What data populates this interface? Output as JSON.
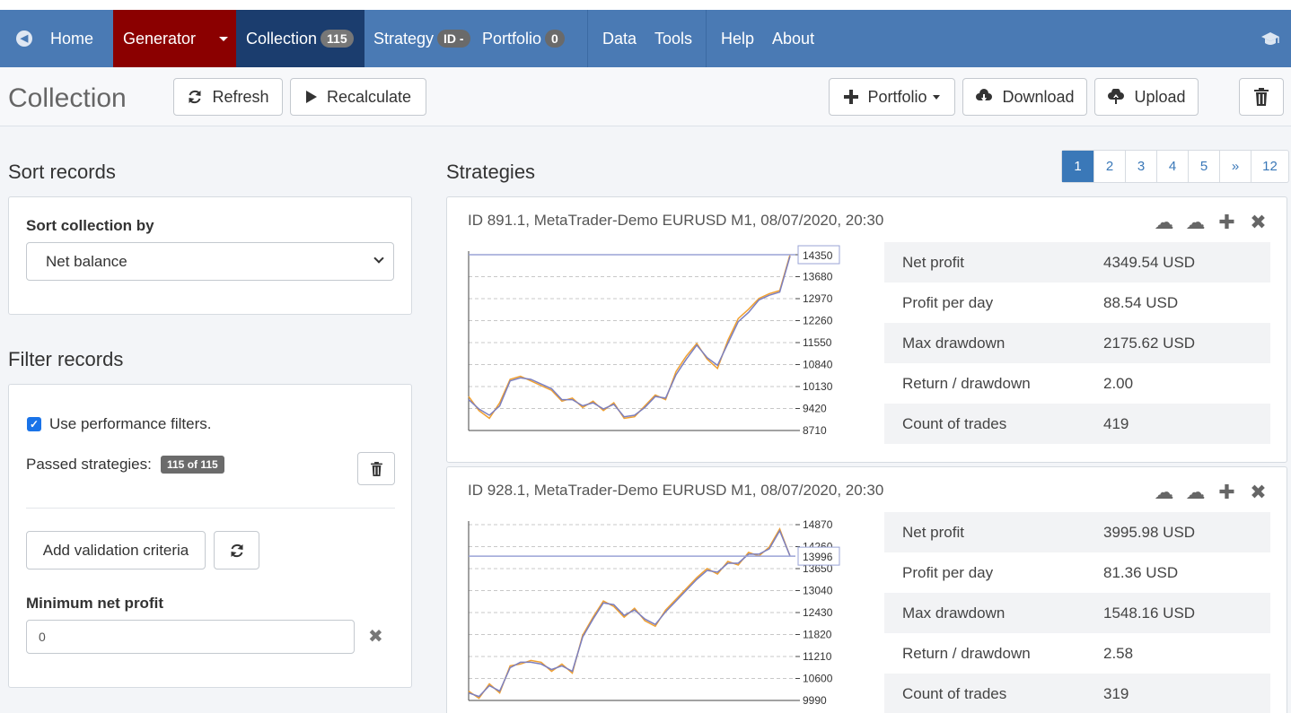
{
  "navbar": {
    "home": "Home",
    "generator": "Generator",
    "collection": "Collection",
    "collection_count": "115",
    "strategy": "Strategy",
    "strategy_badge": "ID -",
    "portfolio": "Portfolio",
    "portfolio_count": "0",
    "data": "Data",
    "tools": "Tools",
    "help": "Help",
    "about": "About"
  },
  "toolbar": {
    "title": "Collection",
    "refresh": "Refresh",
    "recalculate": "Recalculate",
    "portfolio": "Portfolio",
    "download": "Download",
    "upload": "Upload"
  },
  "sort": {
    "section_title": "Sort records",
    "label": "Sort collection by",
    "selected": "Net balance"
  },
  "filter": {
    "section_title": "Filter records",
    "use_filters_label": "Use performance filters.",
    "use_filters_checked": true,
    "passed_label": "Passed strategies:",
    "passed_badge": "115 of 115",
    "add_criteria": "Add validation criteria",
    "min_net_profit_label": "Minimum net profit",
    "min_net_profit_value": "0"
  },
  "strategies": {
    "section_title": "Strategies",
    "pages": [
      "1",
      "2",
      "3",
      "4",
      "5",
      "»",
      "12"
    ],
    "active_page": "1",
    "cards": [
      {
        "title": "ID 891.1, MetaTrader-Demo EURUSD M1, 08/07/2020, 20:30",
        "stats": [
          {
            "label": "Net profit",
            "value": "4349.54 USD"
          },
          {
            "label": "Profit per day",
            "value": "88.54 USD"
          },
          {
            "label": "Max drawdown",
            "value": "2175.62 USD"
          },
          {
            "label": "Return / drawdown",
            "value": "2.00"
          },
          {
            "label": "Count of trades",
            "value": "419"
          }
        ],
        "chart": {
          "y_ticks": [
            "14350",
            "13680",
            "12970",
            "12260",
            "11550",
            "10840",
            "10130",
            "9420",
            "8710"
          ],
          "ylim": [
            8710,
            14350
          ],
          "last_value_label": "14350"
        }
      },
      {
        "title": "ID 928.1, MetaTrader-Demo EURUSD M1, 08/07/2020, 20:30",
        "stats": [
          {
            "label": "Net profit",
            "value": "3995.98 USD"
          },
          {
            "label": "Profit per day",
            "value": "81.36 USD"
          },
          {
            "label": "Max drawdown",
            "value": "1548.16 USD"
          },
          {
            "label": "Return / drawdown",
            "value": "2.58"
          },
          {
            "label": "Count of trades",
            "value": "319"
          }
        ],
        "chart": {
          "y_ticks": [
            "14870",
            "14260",
            "13650",
            "13040",
            "12430",
            "11820",
            "11210",
            "10600",
            "9990"
          ],
          "ylim": [
            9990,
            14870
          ],
          "last_value_label": "13996"
        }
      }
    ]
  },
  "chart_data": [
    {
      "type": "line",
      "ylim": [
        8710,
        14350
      ],
      "series": [
        {
          "values": [
            9800,
            9350,
            9100,
            9600,
            10350,
            10450,
            10300,
            10150,
            10000,
            9650,
            9750,
            9450,
            9650,
            9350,
            9600,
            9100,
            9150,
            9500,
            9850,
            9700,
            10600,
            11100,
            11500,
            11000,
            10700,
            11600,
            12300,
            12600,
            12950,
            13100,
            13200,
            14350
          ]
        },
        {
          "values": [
            9700,
            9400,
            9200,
            9500,
            10300,
            10400,
            10350,
            10200,
            10050,
            9700,
            9700,
            9500,
            9600,
            9400,
            9550,
            9150,
            9200,
            9450,
            9800,
            9750,
            10500,
            11000,
            11450,
            11050,
            10800,
            11500,
            12200,
            12500,
            12900,
            13050,
            13150,
            14300
          ]
        }
      ]
    },
    {
      "type": "line",
      "ylim": [
        9990,
        14870
      ],
      "series": [
        {
          "values": [
            10250,
            10050,
            10450,
            10200,
            10950,
            11000,
            11100,
            11050,
            10800,
            11000,
            10750,
            11800,
            12300,
            12750,
            12600,
            12300,
            12550,
            12200,
            12050,
            12500,
            12800,
            13100,
            13400,
            13650,
            13500,
            13850,
            13750,
            14100,
            14000,
            14250,
            14750,
            13996
          ]
        },
        {
          "values": [
            10200,
            10100,
            10400,
            10250,
            10900,
            11050,
            11050,
            11000,
            10850,
            10950,
            10800,
            11750,
            12250,
            12700,
            12650,
            12350,
            12500,
            12250,
            12100,
            12450,
            12750,
            13050,
            13350,
            13600,
            13550,
            13800,
            13800,
            14050,
            14050,
            14200,
            14700,
            14000
          ]
        }
      ]
    }
  ],
  "colors": {
    "navbar": "#4a7ab4",
    "generator_bg": "#8b0000",
    "collection_bg": "#1b3d6e",
    "series_orange": "#f0a030",
    "series_blue": "#7b7fbf",
    "pager_active": "#3a78b8"
  }
}
